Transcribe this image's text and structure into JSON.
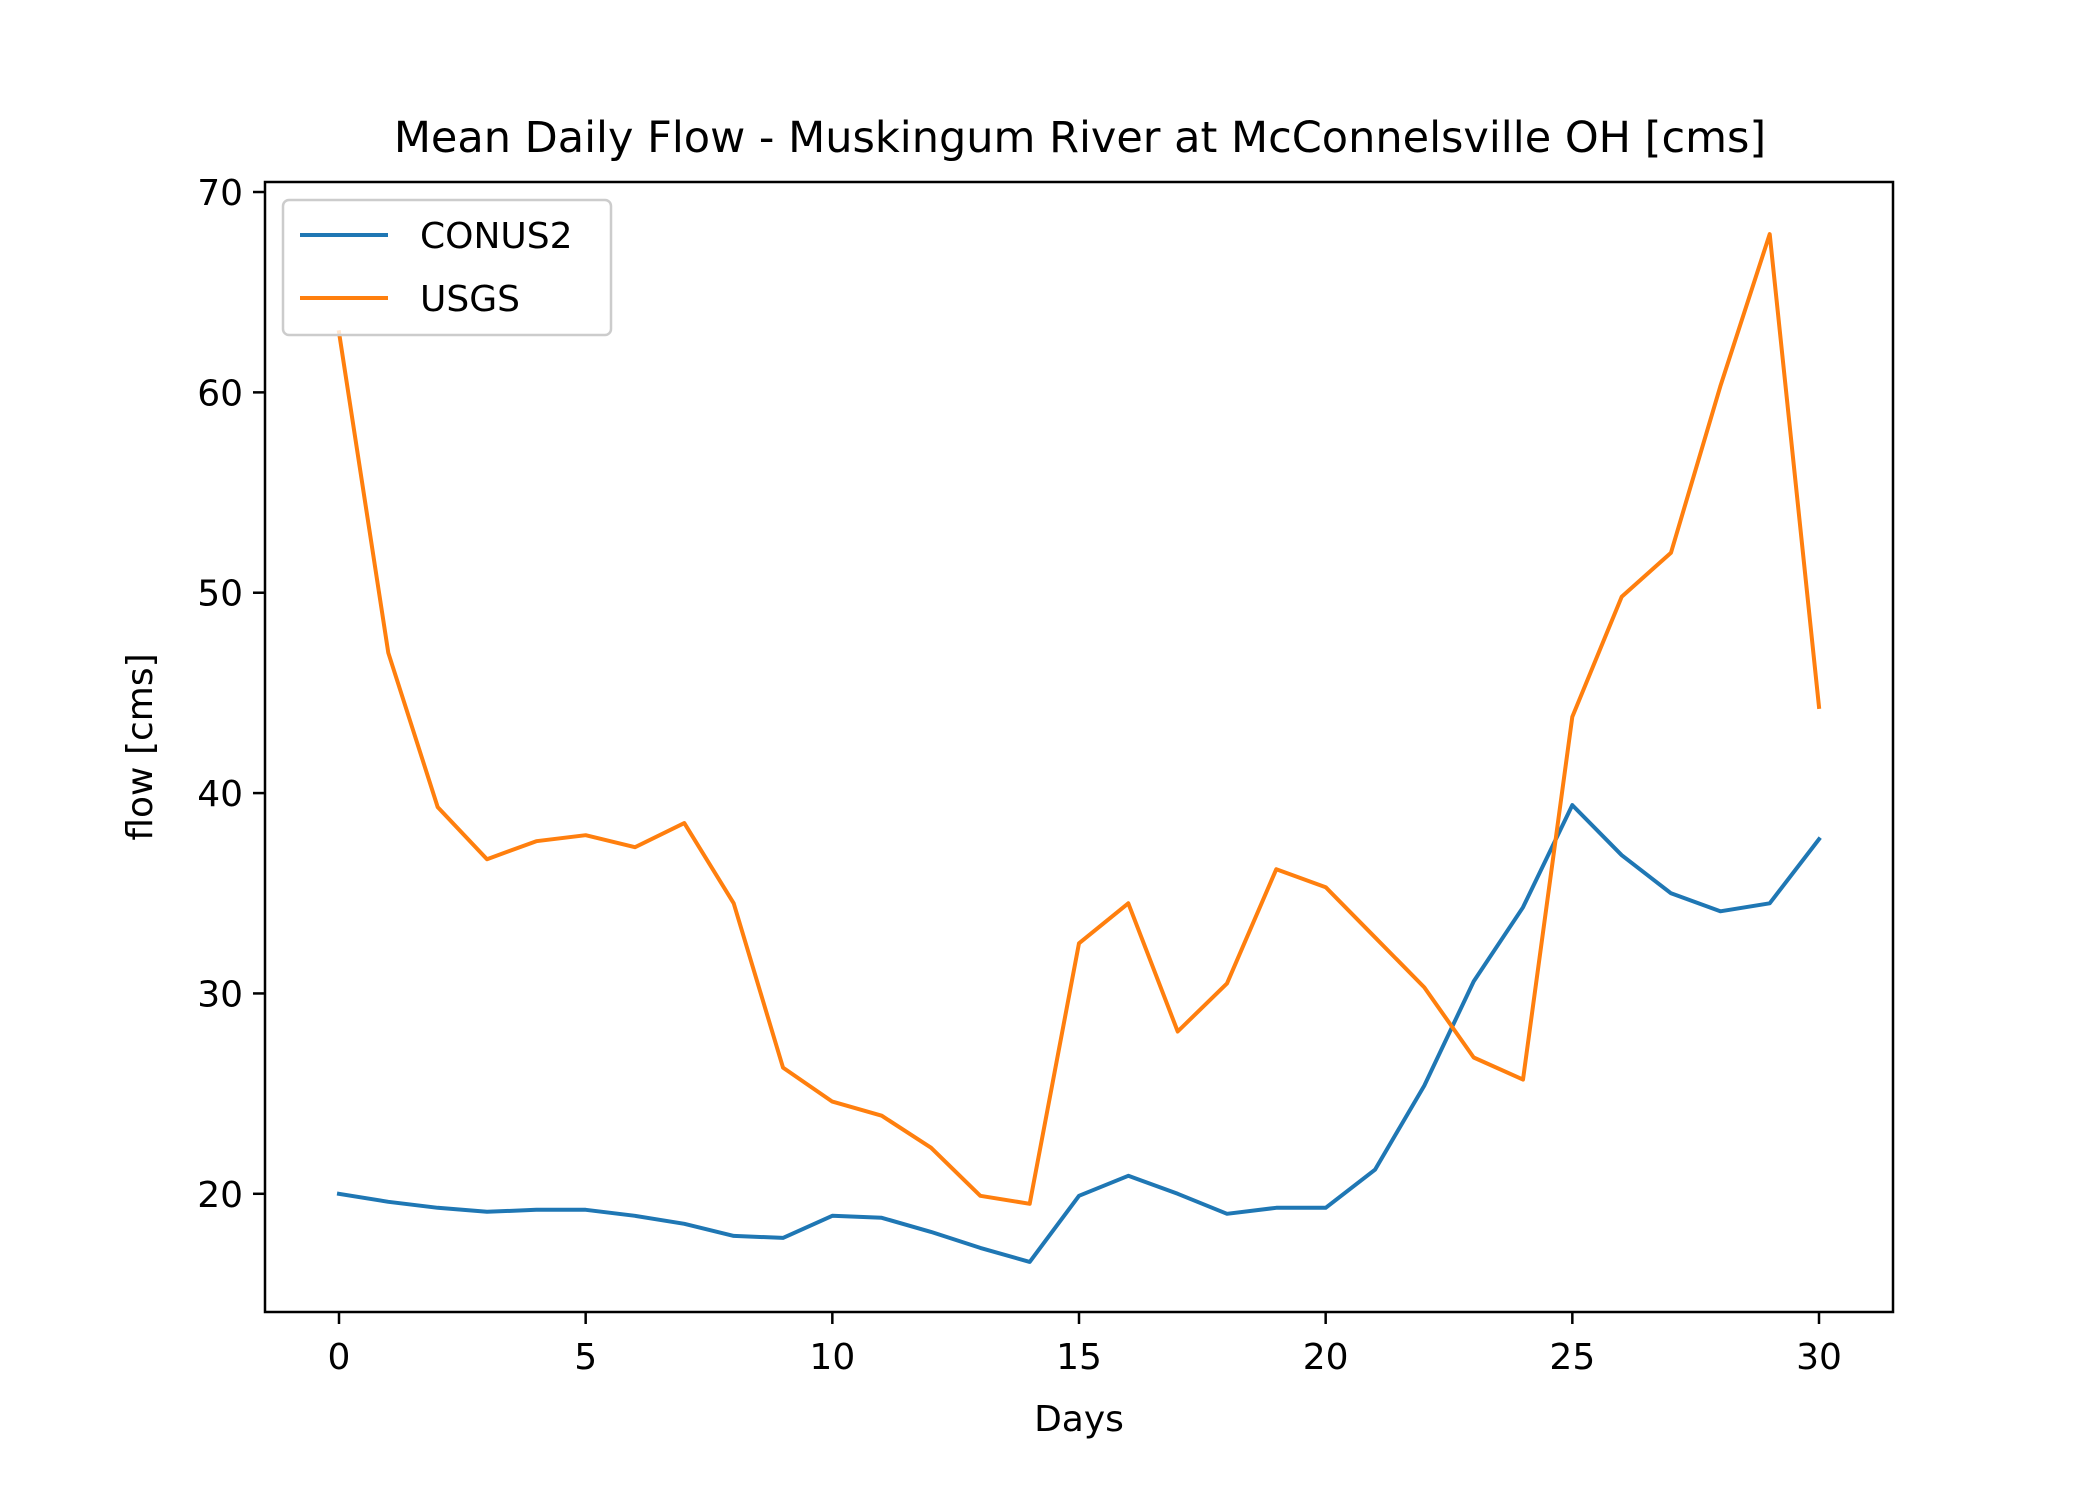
{
  "chart_data": {
    "type": "line",
    "title": "Mean Daily Flow - Muskingum River at McConnelsville OH [cms]",
    "xlabel": "Days",
    "ylabel": "flow [cms]",
    "xlim": [
      -1.5,
      31.5
    ],
    "ylim": [
      14.1,
      70.5
    ],
    "xticks": [
      0,
      5,
      10,
      15,
      20,
      25,
      30
    ],
    "yticks": [
      20,
      30,
      40,
      50,
      60,
      70
    ],
    "legend_position": "upper-left",
    "grid": false,
    "x": [
      0,
      1,
      2,
      3,
      4,
      5,
      6,
      7,
      8,
      9,
      10,
      11,
      12,
      13,
      14,
      15,
      16,
      17,
      18,
      19,
      20,
      21,
      22,
      23,
      24,
      25,
      26,
      27,
      28,
      29,
      30
    ],
    "series": [
      {
        "name": "CONUS2",
        "color": "#1f77b4",
        "values": [
          20.0,
          19.6,
          19.3,
          19.1,
          19.2,
          19.2,
          18.9,
          18.5,
          17.9,
          17.8,
          18.9,
          18.8,
          18.1,
          17.3,
          16.6,
          19.9,
          20.9,
          20.0,
          19.0,
          19.3,
          19.3,
          21.2,
          25.4,
          30.6,
          34.3,
          39.4,
          36.9,
          35.0,
          34.1,
          34.5,
          37.7
        ]
      },
      {
        "name": "USGS",
        "color": "#ff7f0e",
        "values": [
          63.0,
          47.0,
          39.3,
          36.7,
          37.6,
          37.9,
          37.3,
          38.5,
          34.5,
          26.3,
          24.6,
          23.9,
          22.3,
          19.9,
          19.5,
          32.5,
          34.5,
          28.1,
          30.5,
          36.2,
          35.3,
          32.8,
          30.3,
          26.8,
          25.7,
          43.8,
          49.8,
          52.0,
          60.3,
          67.9,
          44.3
        ]
      }
    ]
  }
}
